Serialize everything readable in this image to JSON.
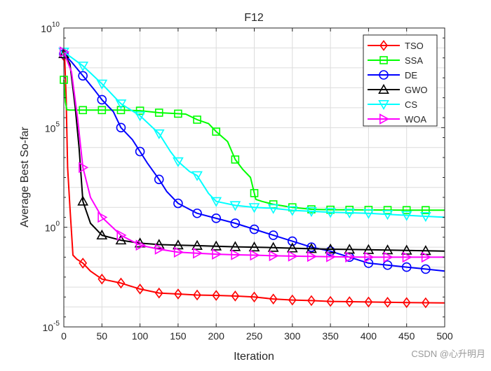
{
  "chart_data": {
    "type": "line",
    "title": "F12",
    "xlabel": "Iteration",
    "ylabel": "Average Best So-far",
    "yscale": "log",
    "xlim": [
      0,
      500
    ],
    "ylim_exp": [
      -5,
      10
    ],
    "x_ticks": [
      "0",
      "50",
      "100",
      "150",
      "200",
      "250",
      "300",
      "350",
      "400",
      "450",
      "500"
    ],
    "x_tick_values": [
      0,
      50,
      100,
      150,
      200,
      250,
      300,
      350,
      400,
      450,
      500
    ],
    "y_ticks": [
      {
        "base": "10",
        "exp": "-5",
        "value": -5
      },
      {
        "base": "10",
        "exp": "0",
        "value": 0
      },
      {
        "base": "10",
        "exp": "5",
        "value": 5
      },
      {
        "base": "10",
        "exp": "10",
        "value": 10
      }
    ],
    "grid": true,
    "legend_position": "top-right",
    "series": [
      {
        "name": "TSO",
        "color": "#ff0000",
        "marker": "diamond",
        "log10_y": [
          [
            1,
            8.6
          ],
          [
            3,
            6.5
          ],
          [
            5,
            3.0
          ],
          [
            8,
            1.0
          ],
          [
            12,
            -1.4
          ],
          [
            17,
            -1.6
          ],
          [
            25,
            -1.8
          ],
          [
            35,
            -2.2
          ],
          [
            50,
            -2.6
          ],
          [
            75,
            -2.8
          ],
          [
            100,
            -3.1
          ],
          [
            125,
            -3.3
          ],
          [
            150,
            -3.35
          ],
          [
            175,
            -3.4
          ],
          [
            200,
            -3.42
          ],
          [
            225,
            -3.45
          ],
          [
            250,
            -3.5
          ],
          [
            275,
            -3.6
          ],
          [
            300,
            -3.65
          ],
          [
            325,
            -3.68
          ],
          [
            350,
            -3.72
          ],
          [
            400,
            -3.75
          ],
          [
            450,
            -3.78
          ],
          [
            500,
            -3.8
          ]
        ],
        "markers_x": [
          0,
          25,
          50,
          75,
          100,
          125,
          150,
          175,
          200,
          225,
          250,
          275,
          300,
          325,
          350,
          375,
          400,
          425,
          450,
          475
        ]
      },
      {
        "name": "SSA",
        "color": "#00ff00",
        "marker": "square",
        "log10_y": [
          [
            0,
            7.4
          ],
          [
            2,
            6.3
          ],
          [
            4,
            5.9
          ],
          [
            8,
            5.88
          ],
          [
            25,
            5.88
          ],
          [
            50,
            5.88
          ],
          [
            75,
            5.88
          ],
          [
            100,
            5.85
          ],
          [
            125,
            5.75
          ],
          [
            150,
            5.7
          ],
          [
            160,
            5.68
          ],
          [
            175,
            5.4
          ],
          [
            190,
            5.2
          ],
          [
            200,
            4.8
          ],
          [
            215,
            4.3
          ],
          [
            225,
            3.4
          ],
          [
            235,
            2.9
          ],
          [
            245,
            2.5
          ],
          [
            252,
            1.4
          ],
          [
            260,
            1.3
          ],
          [
            275,
            1.15
          ],
          [
            300,
            1.0
          ],
          [
            325,
            0.9
          ],
          [
            350,
            0.88
          ],
          [
            400,
            0.87
          ],
          [
            450,
            0.86
          ],
          [
            500,
            0.86
          ]
        ],
        "markers_x": [
          0,
          25,
          50,
          75,
          100,
          125,
          150,
          175,
          200,
          225,
          250,
          275,
          300,
          325,
          350,
          375,
          400,
          425,
          450,
          475
        ]
      },
      {
        "name": "DE",
        "color": "#0000ff",
        "marker": "circle",
        "log10_y": [
          [
            0,
            8.7
          ],
          [
            10,
            8.3
          ],
          [
            25,
            7.6
          ],
          [
            40,
            6.9
          ],
          [
            50,
            6.4
          ],
          [
            65,
            5.8
          ],
          [
            75,
            5.0
          ],
          [
            90,
            4.4
          ],
          [
            100,
            3.8
          ],
          [
            110,
            3.2
          ],
          [
            125,
            2.4
          ],
          [
            135,
            1.8
          ],
          [
            150,
            1.2
          ],
          [
            175,
            0.7
          ],
          [
            200,
            0.45
          ],
          [
            225,
            0.2
          ],
          [
            250,
            -0.1
          ],
          [
            275,
            -0.4
          ],
          [
            300,
            -0.7
          ],
          [
            325,
            -1.0
          ],
          [
            350,
            -1.2
          ],
          [
            375,
            -1.5
          ],
          [
            400,
            -1.8
          ],
          [
            425,
            -1.9
          ],
          [
            450,
            -2.0
          ],
          [
            475,
            -2.1
          ],
          [
            500,
            -2.2
          ]
        ],
        "markers_x": [
          0,
          25,
          50,
          75,
          100,
          125,
          150,
          175,
          200,
          225,
          250,
          275,
          300,
          325,
          350,
          375,
          400,
          425,
          450,
          475
        ]
      },
      {
        "name": "GWO",
        "color": "#000000",
        "marker": "triangle-up",
        "log10_y": [
          [
            0,
            8.7
          ],
          [
            8,
            8.2
          ],
          [
            15,
            6.0
          ],
          [
            20,
            4.0
          ],
          [
            25,
            1.3
          ],
          [
            35,
            0.2
          ],
          [
            50,
            -0.4
          ],
          [
            75,
            -0.65
          ],
          [
            100,
            -0.8
          ],
          [
            125,
            -0.87
          ],
          [
            150,
            -0.9
          ],
          [
            175,
            -0.92
          ],
          [
            200,
            -0.95
          ],
          [
            225,
            -0.98
          ],
          [
            250,
            -1.0
          ],
          [
            275,
            -1.02
          ],
          [
            300,
            -1.05
          ],
          [
            325,
            -1.08
          ],
          [
            350,
            -1.1
          ],
          [
            400,
            -1.13
          ],
          [
            450,
            -1.16
          ],
          [
            500,
            -1.2
          ]
        ],
        "markers_x": [
          0,
          25,
          50,
          75,
          100,
          125,
          150,
          175,
          200,
          225,
          250,
          275,
          300,
          325,
          350,
          375,
          400,
          425,
          450,
          475
        ]
      },
      {
        "name": "CS",
        "color": "#00ffff",
        "marker": "triangle-down",
        "log10_y": [
          [
            0,
            8.8
          ],
          [
            25,
            8.1
          ],
          [
            50,
            7.2
          ],
          [
            75,
            6.2
          ],
          [
            100,
            5.6
          ],
          [
            125,
            4.7
          ],
          [
            140,
            3.8
          ],
          [
            150,
            3.3
          ],
          [
            165,
            2.8
          ],
          [
            175,
            2.6
          ],
          [
            190,
            1.7
          ],
          [
            200,
            1.3
          ],
          [
            225,
            1.1
          ],
          [
            250,
            1.0
          ],
          [
            275,
            0.95
          ],
          [
            300,
            0.85
          ],
          [
            325,
            0.8
          ],
          [
            350,
            0.75
          ],
          [
            400,
            0.7
          ],
          [
            450,
            0.6
          ],
          [
            500,
            0.5
          ]
        ],
        "markers_x": [
          0,
          25,
          50,
          75,
          100,
          125,
          150,
          175,
          200,
          225,
          250,
          275,
          300,
          325,
          350,
          375,
          400,
          425,
          450,
          475
        ]
      },
      {
        "name": "WOA",
        "color": "#ff00ff",
        "marker": "triangle-right",
        "log10_y": [
          [
            0,
            8.8
          ],
          [
            10,
            7.8
          ],
          [
            18,
            5.5
          ],
          [
            25,
            3.0
          ],
          [
            35,
            1.5
          ],
          [
            50,
            0.5
          ],
          [
            75,
            -0.4
          ],
          [
            100,
            -0.9
          ],
          [
            125,
            -1.1
          ],
          [
            150,
            -1.25
          ],
          [
            175,
            -1.3
          ],
          [
            200,
            -1.35
          ],
          [
            225,
            -1.38
          ],
          [
            250,
            -1.4
          ],
          [
            275,
            -1.43
          ],
          [
            300,
            -1.45
          ],
          [
            350,
            -1.48
          ],
          [
            400,
            -1.5
          ],
          [
            450,
            -1.5
          ],
          [
            500,
            -1.5
          ]
        ],
        "markers_x": [
          0,
          25,
          50,
          75,
          100,
          125,
          150,
          175,
          200,
          225,
          250,
          275,
          300,
          325,
          350,
          375,
          400,
          425,
          450,
          475
        ]
      }
    ]
  },
  "watermark": "CSDN @心升明月"
}
